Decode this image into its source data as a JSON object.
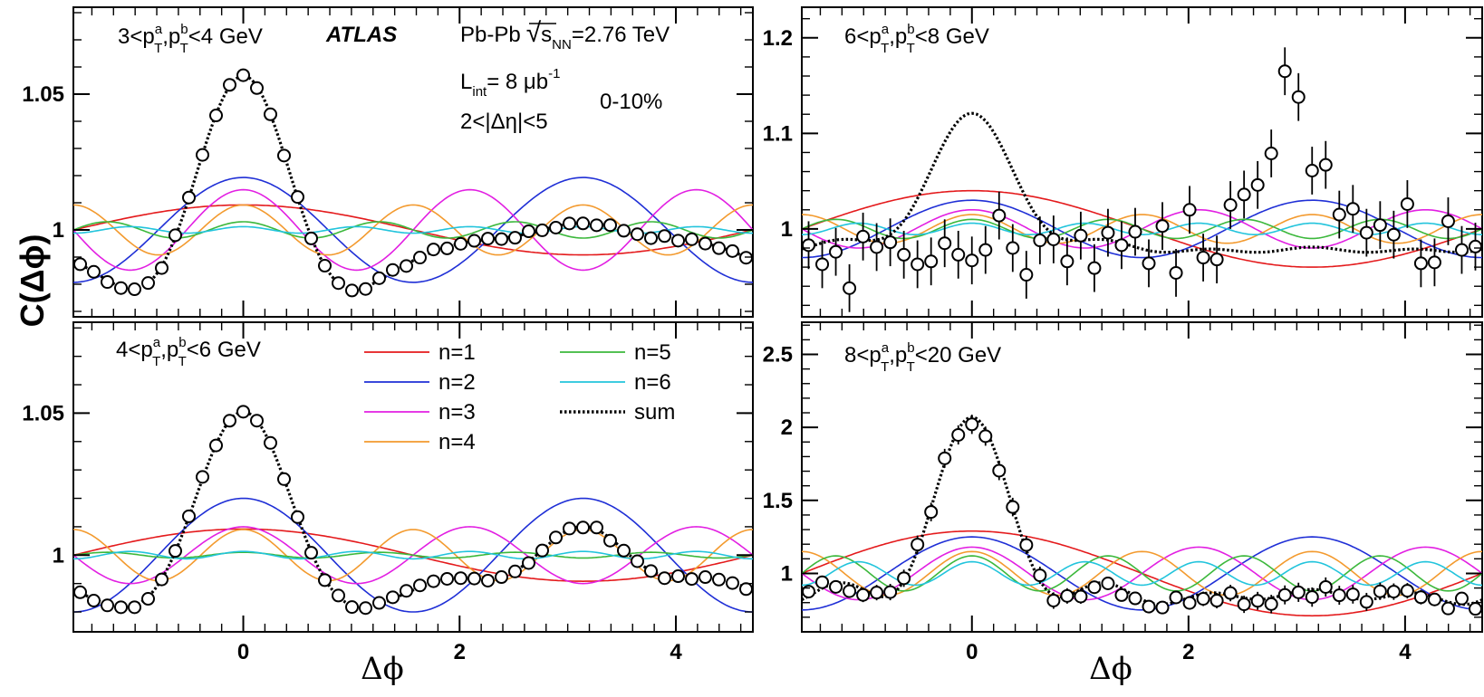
{
  "chart_data": {
    "type": "scatter",
    "title": "",
    "xlabel": "Δϕ",
    "ylabel": "C(Δϕ)",
    "xlim": [
      -1.571,
      4.712
    ],
    "x_ticks": [
      "0",
      "2",
      "4"
    ],
    "experiment": "ATLAS",
    "system": "Pb-Pb",
    "sqrt_s_sub": "NN",
    "energy": "=2.76 TeV",
    "lumi_sub": "int",
    "lumi": "= 8 μb",
    "lumi_sup": "-1",
    "deta_cut": "2<|Δη|<5",
    "centrality": "0-10%",
    "legend": [
      {
        "label": "n=1",
        "color": "#e41a1c",
        "style": "solid"
      },
      {
        "label": "n=2",
        "color": "#1f2fd6",
        "style": "solid"
      },
      {
        "label": "n=3",
        "color": "#e21fe2",
        "style": "solid"
      },
      {
        "label": "n=4",
        "color": "#f39a2e",
        "style": "solid"
      },
      {
        "label": "n=5",
        "color": "#3cb83c",
        "style": "solid"
      },
      {
        "label": "n=6",
        "color": "#22c4dc",
        "style": "solid"
      },
      {
        "label": "sum",
        "color": "#000000",
        "style": "dotted"
      }
    ],
    "panels": [
      {
        "id": "p1",
        "pt_lo": "3",
        "pt_hi": "4 GeV",
        "ylim": [
          0.968,
          1.082
        ],
        "y_ticks": [
          1,
          1.05
        ],
        "y_tick_labels": [
          "1",
          "1.05"
        ],
        "v": [
          0.0092,
          0.0193,
          0.0148,
          0.0092,
          0.003,
          0.0012
        ],
        "errors": 0
      },
      {
        "id": "p2",
        "pt_lo": "6",
        "pt_hi": "8 GeV",
        "ylim": [
          0.908,
          1.232
        ],
        "y_ticks": [
          1,
          1.1,
          1.2
        ],
        "y_tick_labels": [
          "1",
          "1.1",
          "1.2"
        ],
        "v": [
          0.04,
          0.03,
          0.02,
          0.015,
          0.01,
          0.006
        ],
        "points": [
          0.983,
          0.963,
          0.976,
          0.938,
          0.992,
          0.981,
          0.986,
          0.973,
          0.963,
          0.966,
          0.985,
          0.973,
          0.967,
          0.978,
          1.014,
          0.98,
          0.952,
          0.988,
          0.989,
          0.966,
          0.993,
          0.959,
          0.996,
          0.983,
          0.997,
          0.964,
          1.003,
          0.954,
          1.02,
          0.97,
          0.968,
          1.025,
          1.036,
          1.046,
          1.079,
          1.165,
          1.138,
          1.061,
          1.067,
          1.015,
          1.021,
          0.996,
          1.004,
          0.994,
          1.026,
          0.964,
          0.965,
          1.008,
          0.978
        ],
        "errors": 0.025
      },
      {
        "id": "p3",
        "pt_lo": "4",
        "pt_hi": "6 GeV",
        "ylim": [
          0.973,
          1.082
        ],
        "y_ticks": [
          1,
          1.05
        ],
        "y_tick_labels": [
          "1",
          "1.05"
        ],
        "v": [
          0.0092,
          0.02,
          0.01,
          0.009,
          0.001,
          0.0013
        ],
        "errors": 0
      },
      {
        "id": "p4",
        "pt_lo": "8",
        "pt_hi": "20 GeV",
        "ylim": [
          0.6,
          2.72
        ],
        "y_ticks": [
          1,
          1.5,
          2,
          2.5
        ],
        "y_tick_labels": [
          "1",
          "1.5",
          "2",
          "2.5"
        ],
        "v": [
          0.29,
          0.25,
          0.18,
          0.15,
          0.12,
          0.08
        ],
        "errors": 0.06
      }
    ]
  }
}
